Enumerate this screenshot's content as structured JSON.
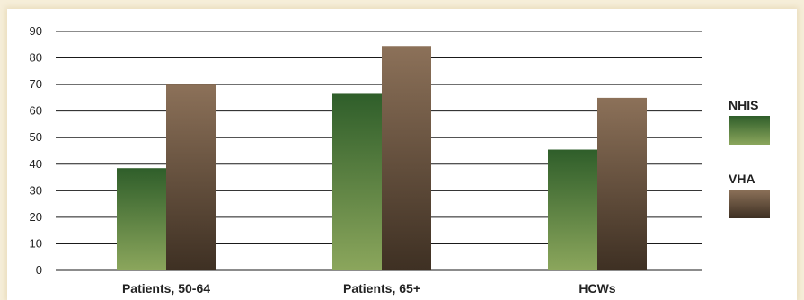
{
  "chart_data": {
    "type": "bar",
    "categories": [
      "Patients, 50-64",
      "Patients, 65+",
      "HCWs"
    ],
    "series": [
      {
        "name": "NHIS",
        "values": [
          38.5,
          66.5,
          45.5
        ],
        "color_top": "#2f5e2a",
        "color_bottom": "#8ba65c"
      },
      {
        "name": "VHA",
        "values": [
          70,
          84.5,
          65
        ],
        "color_top": "#8c7159",
        "color_bottom": "#3e3023"
      }
    ],
    "ylim": [
      0,
      90
    ],
    "yticks": [
      "0",
      "10",
      "20",
      "30",
      "40",
      "50",
      "60",
      "70",
      "80",
      "90"
    ],
    "grid": true,
    "legend_position": "right"
  }
}
